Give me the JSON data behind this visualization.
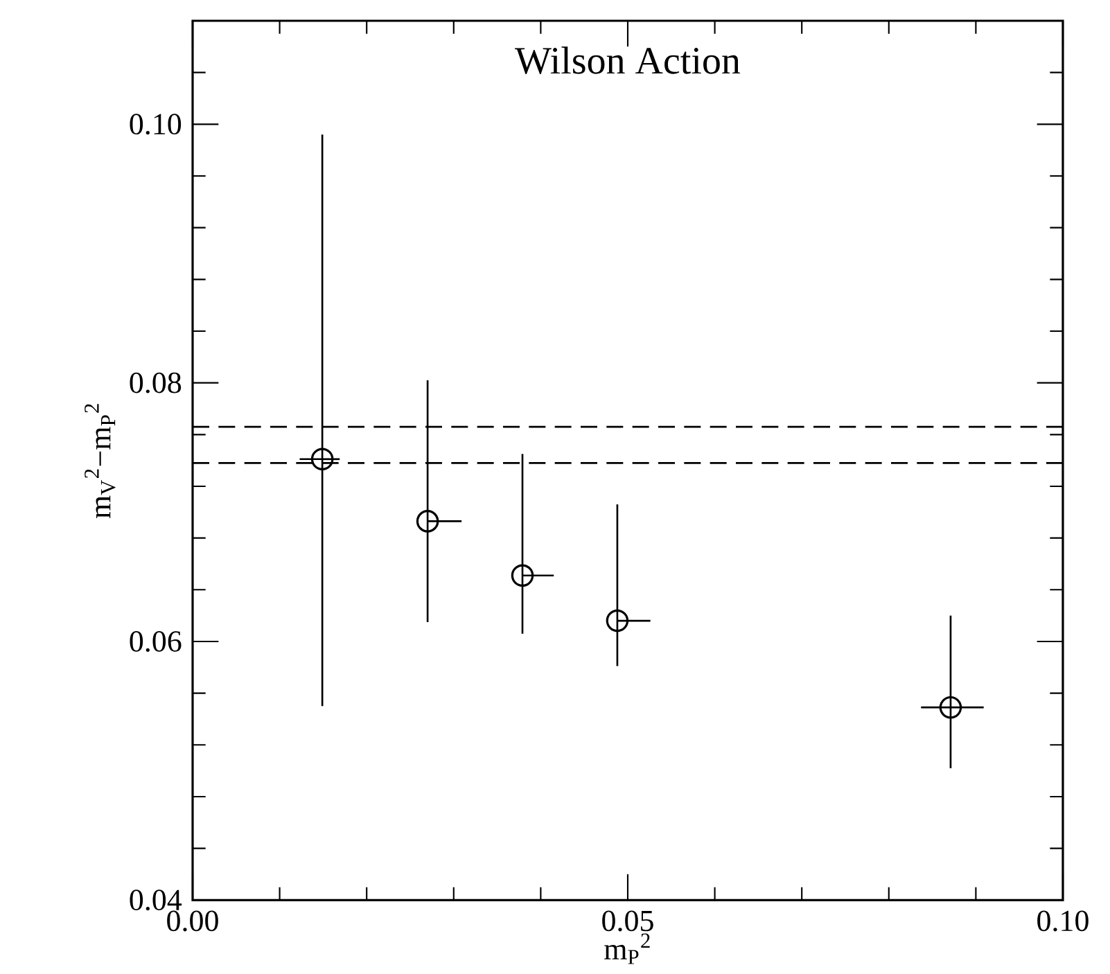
{
  "chart_data": {
    "type": "scatter",
    "title": "Wilson Action",
    "xlabel": "m$_{P}$$^{2}$",
    "ylabel": "m$_{V}$$^{2}$−m$_{P}$$^{2}$",
    "x": [
      0.0149,
      0.027,
      0.0379,
      0.0488,
      0.0871
    ],
    "values": [
      0.0741,
      0.0693,
      0.0651,
      0.0616,
      0.0549
    ],
    "errors": [
      [
        0.055,
        0.0992
      ],
      [
        0.0615,
        0.0802
      ],
      [
        0.0606,
        0.0745
      ],
      [
        0.0581,
        0.0706
      ],
      [
        0.0502,
        0.062
      ]
    ],
    "xerrors": [
      [
        0.0123,
        0.0169
      ],
      [
        0.027,
        0.0309
      ],
      [
        0.0379,
        0.0415
      ],
      [
        0.0488,
        0.0526
      ],
      [
        0.0837,
        0.0909
      ]
    ],
    "color": "#000000",
    "marker": "circle",
    "xlim": [
      0,
      0.1
    ],
    "ylim": [
      0.04,
      0.108
    ],
    "xticks": [
      {
        "value": 0,
        "label": "0.00"
      },
      {
        "value": 0.01,
        "label": null
      },
      {
        "value": 0.02,
        "label": null
      },
      {
        "value": 0.03,
        "label": null
      },
      {
        "value": 0.04,
        "label": null
      },
      0.05,
      {
        "value": 0.06,
        "label": null
      },
      {
        "value": 0.07,
        "label": null
      },
      {
        "value": 0.08,
        "label": null
      },
      {
        "value": 0.09,
        "label": null
      },
      {
        "value": 0.1,
        "label": "0.10"
      }
    ],
    "yticks": [
      0.04,
      {
        "value": 0.044,
        "label": null
      },
      {
        "value": 0.048,
        "label": null
      },
      {
        "value": 0.052,
        "label": null
      },
      {
        "value": 0.056,
        "label": null
      },
      0.06,
      {
        "value": 0.064,
        "label": null
      },
      {
        "value": 0.068,
        "label": null
      },
      {
        "value": 0.072,
        "label": null
      },
      {
        "value": 0.076,
        "label": null
      },
      0.08,
      {
        "value": 0.084,
        "label": null
      },
      {
        "value": 0.088,
        "label": null
      },
      {
        "value": 0.092,
        "label": null
      },
      {
        "value": 0.096,
        "label": null
      },
      {
        "value": 0.1,
        "label": "0.10"
      },
      {
        "value": 0.104,
        "label": null
      }
    ],
    "ref_lines": [
      {
        "axis": "y",
        "value": 0.0766,
        "line_style": "dashed"
      },
      {
        "axis": "y",
        "value": 0.0738,
        "line_style": "dashed"
      }
    ],
    "grid": false
  }
}
